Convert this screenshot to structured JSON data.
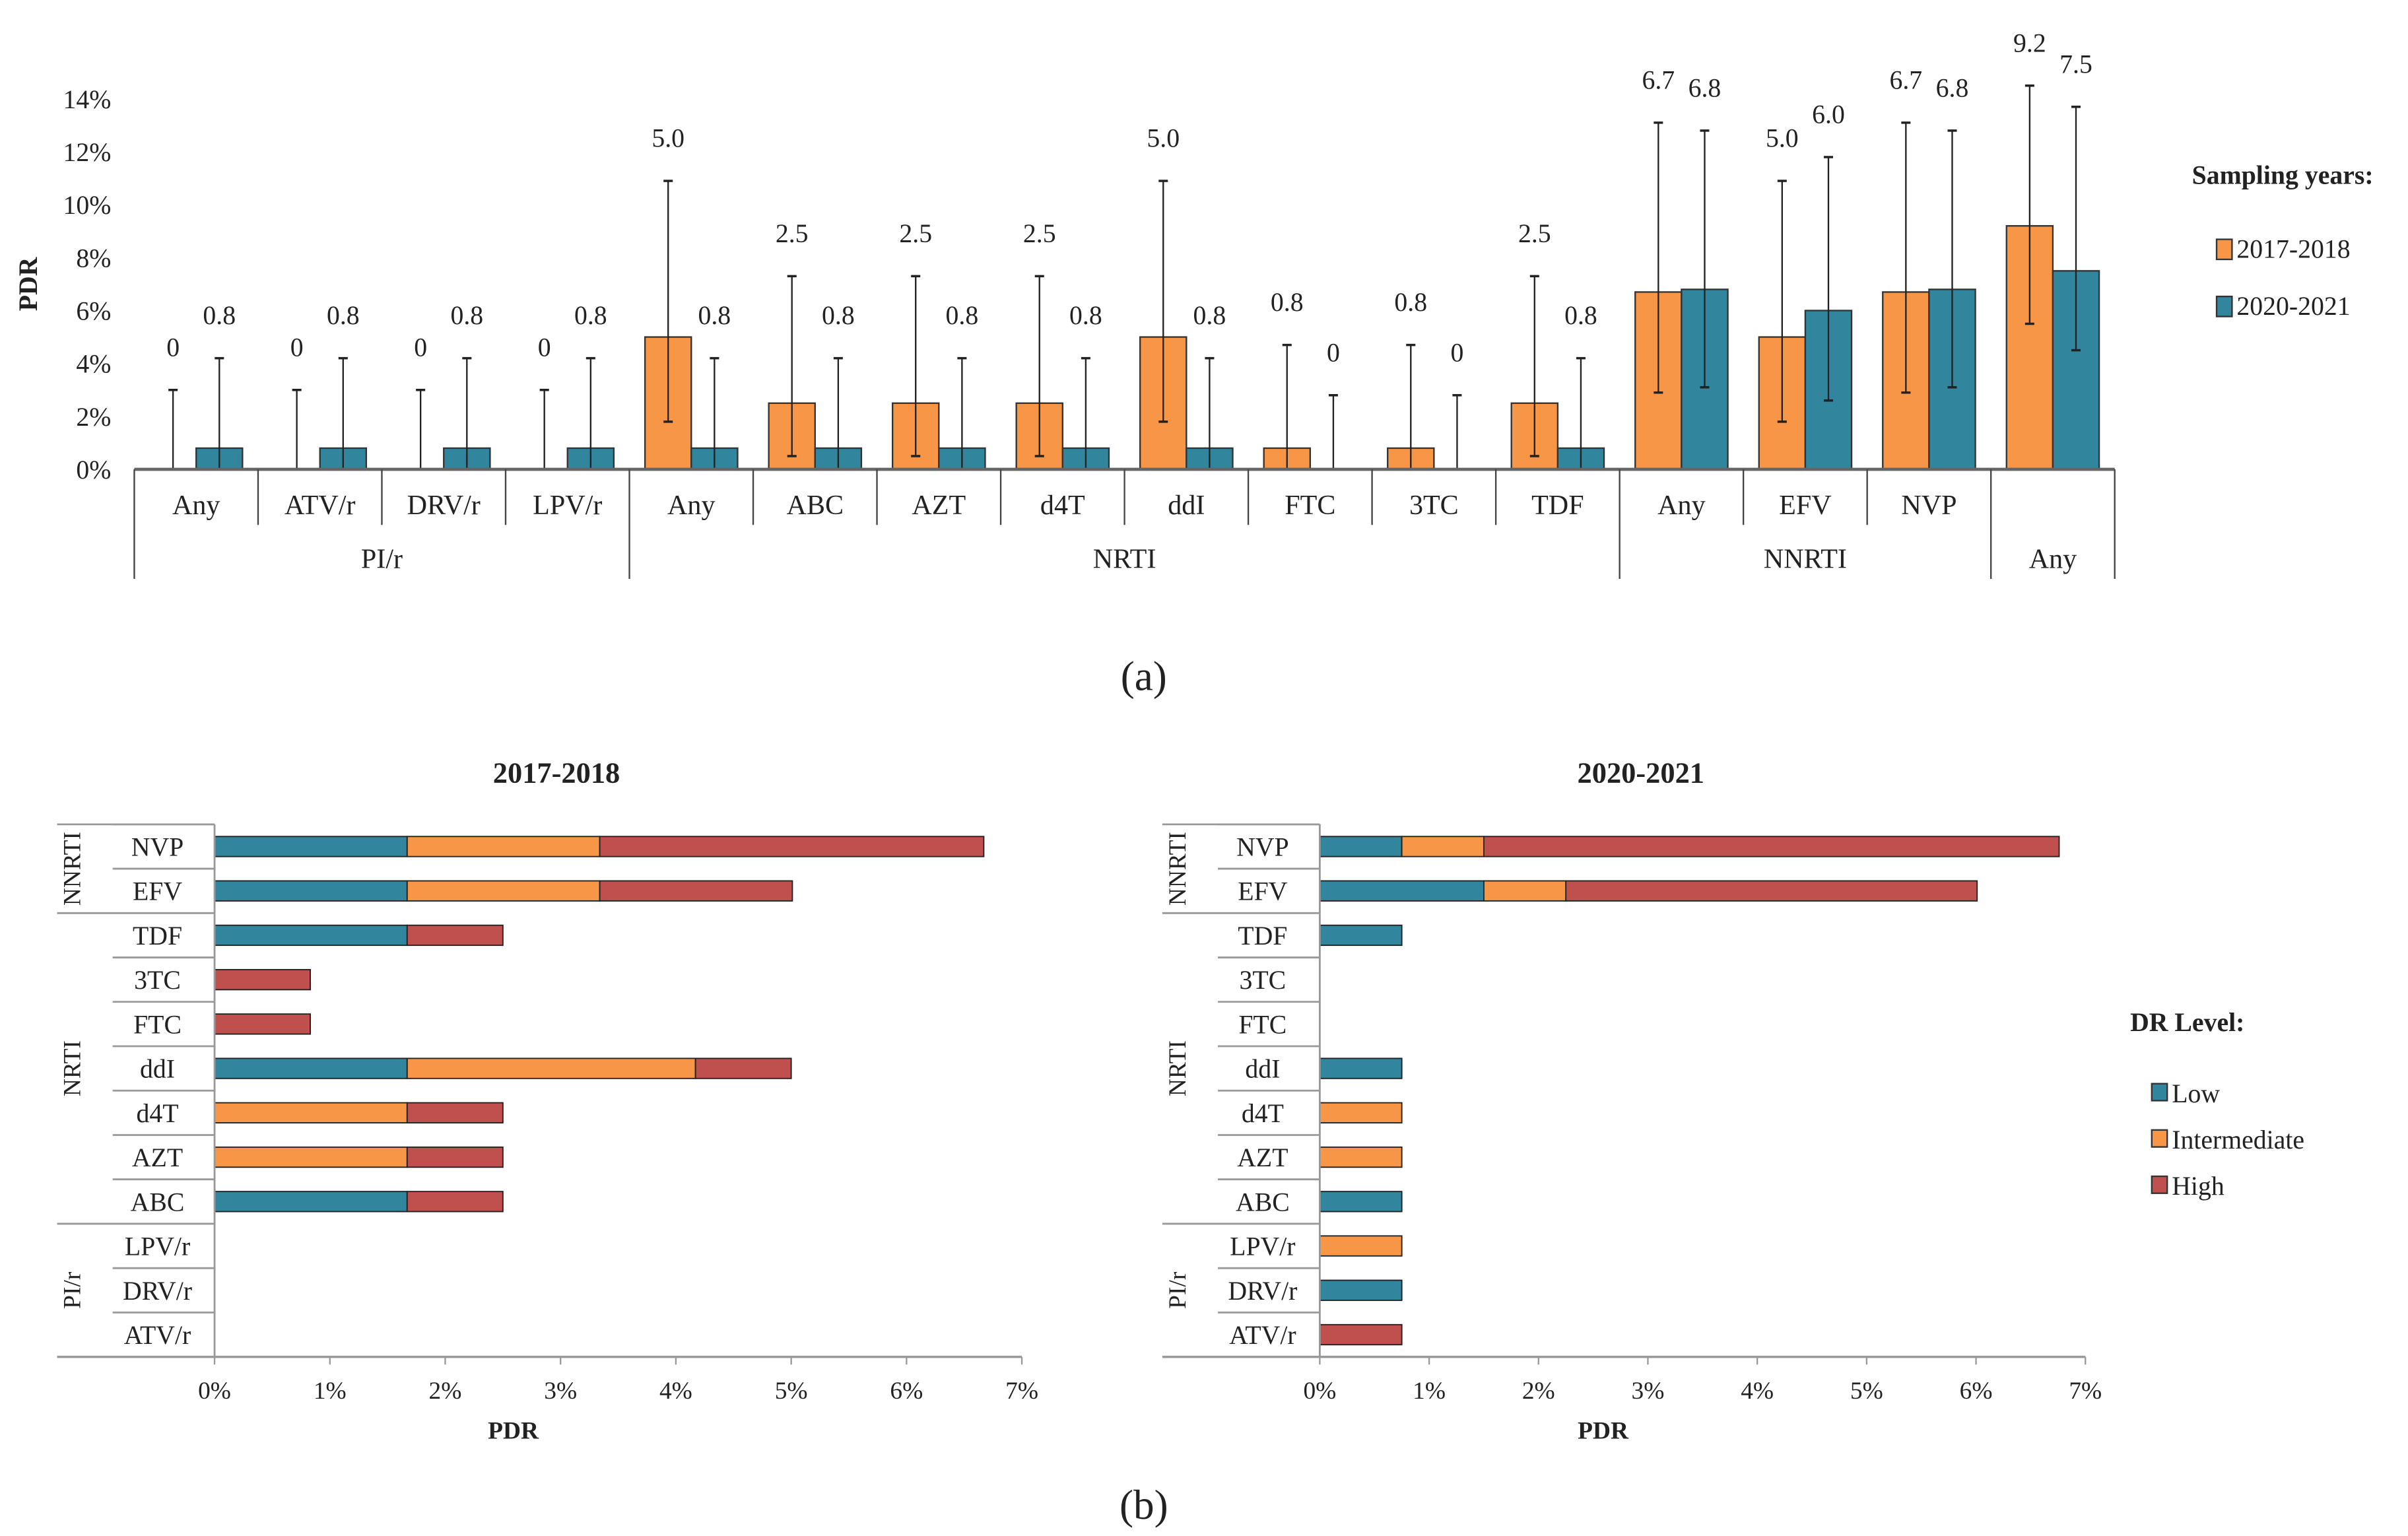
{
  "colors": {
    "y2017": "#F79646",
    "y2020": "#31859C",
    "low": "#31859C",
    "intermediate": "#F79646",
    "high": "#C0504D"
  },
  "chart_data": [
    {
      "type": "bar",
      "panel_label": "(a)",
      "ylabel": "PDR",
      "ylim": [
        0,
        14
      ],
      "yticks": [
        "0%",
        "2%",
        "4%",
        "6%",
        "8%",
        "10%",
        "12%",
        "14%"
      ],
      "legend_title": "Sampling years:",
      "legend_placement": "right",
      "series_names": [
        "2017-2018",
        "2020-2021"
      ],
      "groups": [
        {
          "name": "PI/r",
          "categories": [
            "Any",
            "ATV/r",
            "DRV/r",
            "LPV/r"
          ]
        },
        {
          "name": "NRTI",
          "categories": [
            "Any",
            "ABC",
            "AZT",
            "d4T",
            "ddI",
            "FTC",
            "3TC",
            "TDF"
          ]
        },
        {
          "name": "NNRTI",
          "categories": [
            "Any",
            "EFV",
            "NVP"
          ]
        },
        {
          "name": "Any",
          "categories": [
            ""
          ]
        }
      ],
      "series": [
        {
          "name": "2017-2018",
          "values": [
            0,
            0,
            0,
            0,
            5.0,
            2.5,
            2.5,
            2.5,
            5.0,
            0.8,
            0.8,
            2.5,
            6.7,
            5.0,
            6.7,
            9.2
          ],
          "labels": [
            "0",
            "0",
            "0",
            "0",
            "5.0",
            "2.5",
            "2.5",
            "2.5",
            "5.0",
            "0.8",
            "0.8",
            "2.5",
            "6.7",
            "5.0",
            "6.7",
            "9.2"
          ],
          "ci_low": [
            0,
            0,
            0,
            0,
            1.8,
            0.5,
            0.5,
            0.5,
            1.8,
            0,
            0,
            0.5,
            2.9,
            1.8,
            2.9,
            5.5
          ],
          "ci_high": [
            3.0,
            3.0,
            3.0,
            3.0,
            10.9,
            7.3,
            7.3,
            7.3,
            10.9,
            4.7,
            4.7,
            7.3,
            13.1,
            10.9,
            13.1,
            15.0
          ]
        },
        {
          "name": "2020-2021",
          "values": [
            0.8,
            0.8,
            0.8,
            0.8,
            0.8,
            0.8,
            0.8,
            0.8,
            0.8,
            0,
            0,
            0.8,
            6.8,
            6.0,
            6.8,
            7.5
          ],
          "labels": [
            "0.8",
            "0.8",
            "0.8",
            "0.8",
            "0.8",
            "0.8",
            "0.8",
            "0.8",
            "0.8",
            "0",
            "0",
            "0.8",
            "6.8",
            "6.0",
            "6.8",
            "7.5"
          ],
          "ci_low": [
            0,
            0,
            0,
            0,
            0,
            0,
            0,
            0,
            0,
            0,
            0,
            0,
            3.1,
            2.6,
            3.1,
            4.5
          ],
          "ci_high": [
            4.2,
            4.2,
            4.2,
            4.2,
            4.2,
            4.2,
            4.2,
            4.2,
            4.2,
            2.8,
            2.8,
            4.2,
            12.8,
            11.8,
            12.8,
            13.7
          ]
        }
      ]
    },
    {
      "type": "bar",
      "orientation": "horizontal-stacked",
      "panel_label": "(b)",
      "title": "2017-2018",
      "xlabel": "PDR",
      "xlim": [
        0,
        7
      ],
      "xticks": [
        "0%",
        "1%",
        "2%",
        "3%",
        "4%",
        "5%",
        "6%",
        "7%"
      ],
      "groups": [
        {
          "name": "NNRTI",
          "categories": [
            "NVP",
            "EFV"
          ]
        },
        {
          "name": "NRTI",
          "categories": [
            "TDF",
            "3TC",
            "FTC",
            "ddI",
            "d4T",
            "AZT",
            "ABC"
          ]
        },
        {
          "name": "PI/r",
          "categories": [
            "LPV/r",
            "DRV/r",
            "ATV/r"
          ]
        }
      ],
      "series": [
        {
          "name": "Low",
          "values": [
            1.67,
            1.67,
            1.67,
            0,
            0,
            1.67,
            0,
            0,
            1.67,
            0,
            0,
            0
          ]
        },
        {
          "name": "Intermediate",
          "values": [
            1.67,
            1.67,
            0,
            0,
            0,
            2.5,
            1.67,
            1.67,
            0,
            0,
            0,
            0
          ]
        },
        {
          "name": "High",
          "values": [
            3.33,
            1.67,
            0.83,
            0.83,
            0.83,
            0.83,
            0.83,
            0.83,
            0.83,
            0,
            0,
            0
          ]
        }
      ]
    },
    {
      "type": "bar",
      "orientation": "horizontal-stacked",
      "title": "2020-2021",
      "xlabel": "PDR",
      "xlim": [
        0,
        7
      ],
      "xticks": [
        "0%",
        "1%",
        "2%",
        "3%",
        "4%",
        "5%",
        "6%",
        "7%"
      ],
      "legend_title": "DR Level:",
      "legend_placement": "right",
      "groups": [
        {
          "name": "NNRTI",
          "categories": [
            "NVP",
            "EFV"
          ]
        },
        {
          "name": "NRTI",
          "categories": [
            "TDF",
            "3TC",
            "FTC",
            "ddI",
            "d4T",
            "AZT",
            "ABC"
          ]
        },
        {
          "name": "PI/r",
          "categories": [
            "LPV/r",
            "DRV/r",
            "ATV/r"
          ]
        }
      ],
      "series": [
        {
          "name": "Low",
          "values": [
            0.75,
            1.5,
            0.75,
            0,
            0,
            0.75,
            0,
            0,
            0.75,
            0,
            0.75,
            0
          ]
        },
        {
          "name": "Intermediate",
          "values": [
            0.75,
            0.75,
            0,
            0,
            0,
            0,
            0.75,
            0.75,
            0,
            0.75,
            0,
            0
          ]
        },
        {
          "name": "High",
          "values": [
            5.26,
            3.76,
            0,
            0,
            0,
            0,
            0,
            0,
            0,
            0,
            0,
            0.75
          ]
        }
      ]
    }
  ]
}
